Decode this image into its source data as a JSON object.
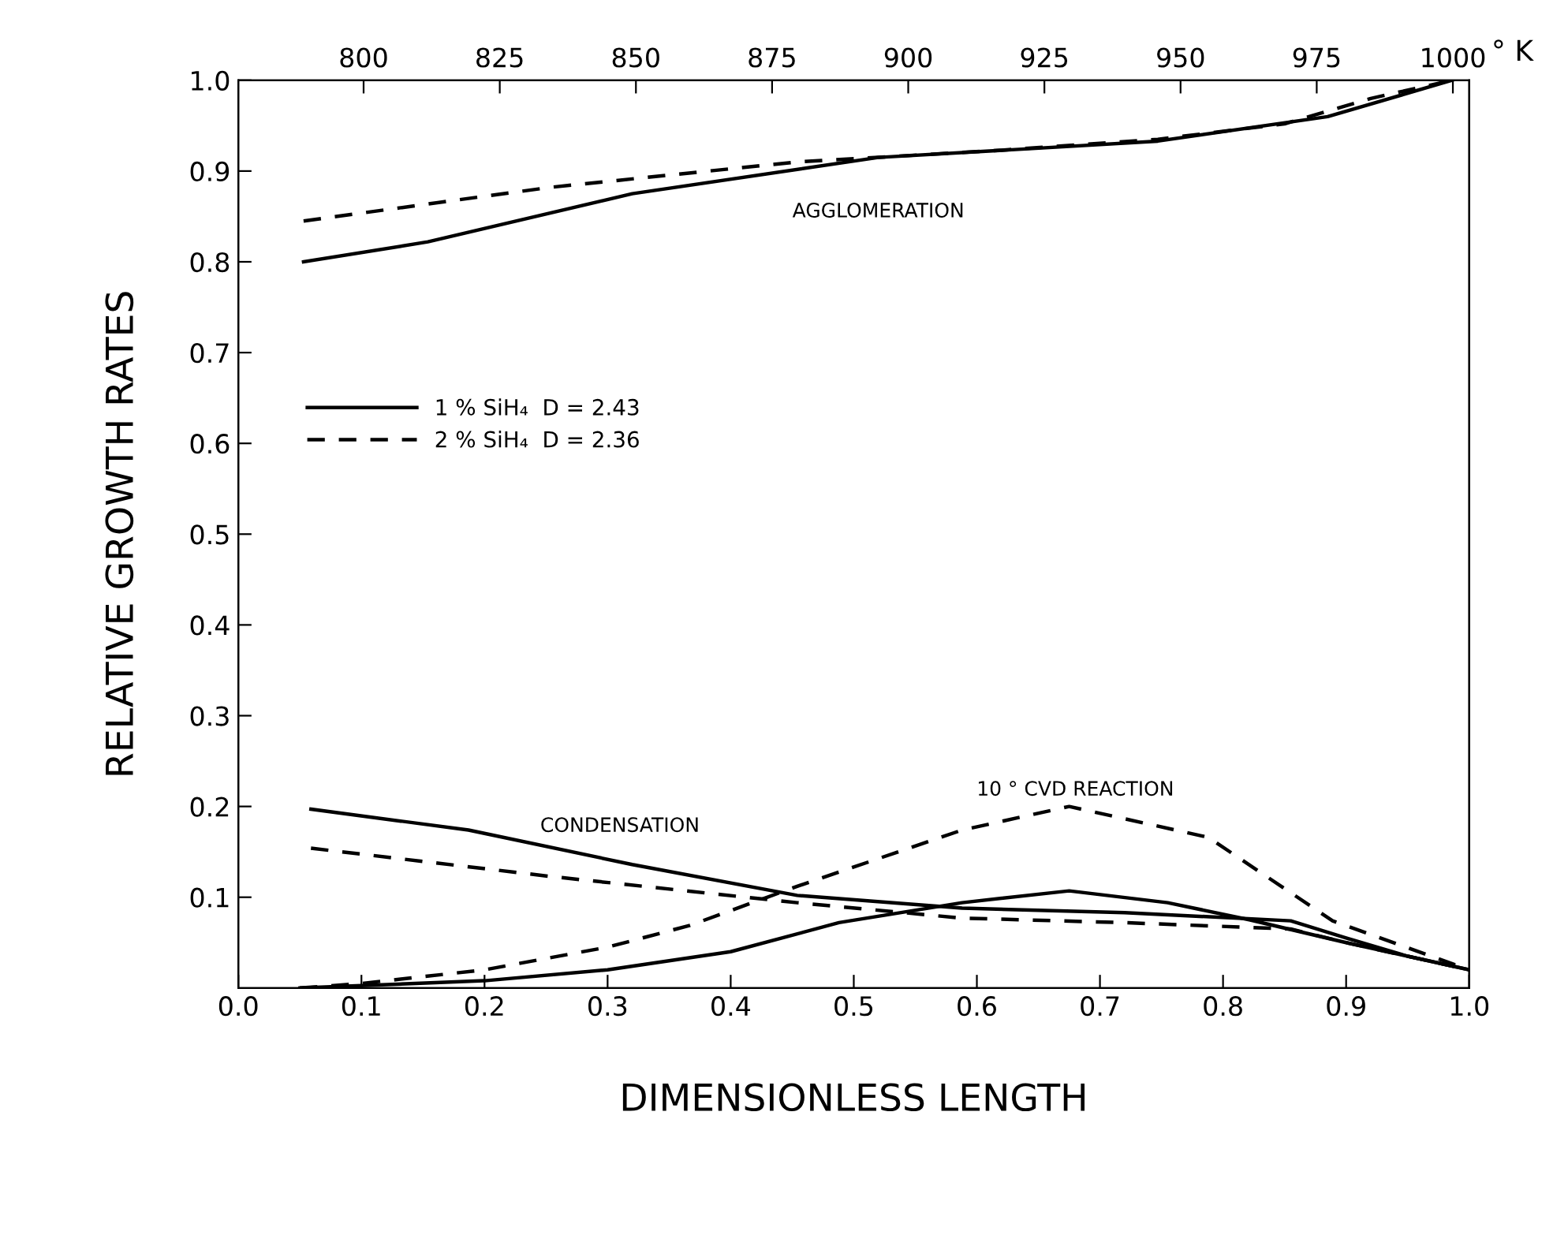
{
  "chart_data": {
    "type": "line",
    "xlabel": "DIMENSIONLESS LENGTH",
    "ylabel": "RELATIVE GROWTH RATES",
    "x2label": "° K",
    "xlim": [
      0,
      1.0
    ],
    "xticks": [
      {
        "value": 0,
        "label": "0.0"
      },
      0.1,
      0.2,
      0.3,
      0.4,
      0.5,
      0.6,
      0.7,
      0.8,
      0.9,
      {
        "value": 1,
        "label": "1.0"
      }
    ],
    "ylim": [
      0,
      1.0
    ],
    "yticks": [
      0.1,
      0.2,
      0.3,
      0.4,
      0.5,
      0.6,
      0.7,
      0.8,
      0.9,
      {
        "value": 1,
        "label": "1.0"
      }
    ],
    "x2lim": [
      777,
      1003
    ],
    "x2ticks": [
      800,
      825,
      850,
      875,
      900,
      925,
      950,
      975,
      1000
    ],
    "grid": false,
    "legend": "left",
    "marker": "none",
    "series": [
      {
        "name": "1 % SiH₄  D = 2.43",
        "color": "#000000",
        "line_style": "solid",
        "x": [
          0.053,
          0.154,
          0.32,
          0.52,
          0.61,
          0.747,
          0.885,
          0.986
        ],
        "values": [
          0.8,
          0.822,
          0.875,
          0.915,
          0.922,
          0.933,
          0.96,
          1.0
        ]
      },
      {
        "name": "2 % SiH₄  D = 2.36",
        "color": "#000000",
        "line_style": "dashed",
        "x": [
          0.053,
          0.253,
          0.454,
          0.62,
          0.747,
          0.85,
          0.92,
          0.986
        ],
        "values": [
          0.845,
          0.882,
          0.91,
          0.923,
          0.935,
          0.952,
          0.98,
          1.0
        ]
      },
      {
        "color": "#000000",
        "line_style": "solid",
        "x": [
          0.059,
          0.187,
          0.32,
          0.454,
          0.588,
          0.72,
          0.855,
          0.9,
          0.95,
          1.0
        ],
        "values": [
          0.197,
          0.174,
          0.136,
          0.102,
          0.088,
          0.083,
          0.074,
          0.055,
          0.035,
          0.02
        ]
      },
      {
        "color": "#000000",
        "line_style": "dashed",
        "x": [
          0.059,
          0.253,
          0.454,
          0.588,
          0.72,
          0.855,
          0.9,
          0.95,
          1.0
        ],
        "values": [
          0.154,
          0.123,
          0.094,
          0.077,
          0.072,
          0.065,
          0.05,
          0.035,
          0.02
        ]
      },
      {
        "color": "#000000",
        "line_style": "solid",
        "x": [
          0.05,
          0.2,
          0.3,
          0.4,
          0.488,
          0.588,
          0.675,
          0.755,
          0.822,
          0.9,
          1.0
        ],
        "values": [
          0.0,
          0.008,
          0.02,
          0.04,
          0.072,
          0.094,
          0.107,
          0.094,
          0.075,
          0.05,
          0.02
        ]
      },
      {
        "color": "#000000",
        "line_style": "dashed",
        "x": [
          0.05,
          0.1,
          0.2,
          0.3,
          0.367,
          0.454,
          0.588,
          0.675,
          0.788,
          0.889,
          1.0
        ],
        "values": [
          0.0,
          0.005,
          0.02,
          0.045,
          0.069,
          0.112,
          0.174,
          0.2,
          0.166,
          0.074,
          0.02
        ]
      }
    ],
    "annotations": [
      "AGGLOMERATION",
      "CONDENSATION",
      "10 ° CVD REACTION"
    ]
  }
}
